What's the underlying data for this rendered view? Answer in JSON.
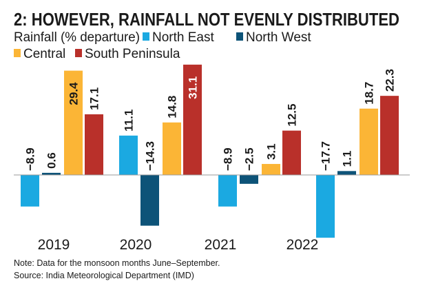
{
  "chart_data": {
    "type": "bar",
    "title": "2: HOWEVER, RAINFALL NOT EVENLY DISTRIBUTED",
    "ylabel": "Rainfall (% departure)",
    "categories": [
      "2019",
      "2020",
      "2021",
      "2022"
    ],
    "series": [
      {
        "name": "North East",
        "color": "#1ba9e1",
        "values": [
          -8.9,
          11.1,
          -8.9,
          -17.7
        ]
      },
      {
        "name": "North West",
        "color": "#0d5378",
        "values": [
          0.6,
          -14.3,
          -2.5,
          1.1
        ]
      },
      {
        "name": "Central",
        "color": "#fbb536",
        "values": [
          29.4,
          14.8,
          3.1,
          18.7
        ]
      },
      {
        "name": "South Peninsula",
        "color": "#b9302a",
        "values": [
          17.1,
          31.1,
          12.5,
          22.3
        ]
      }
    ],
    "ylim": [
      -20,
      32
    ],
    "grid": false,
    "legend": "top-left",
    "notes": [
      "Note: Data for the monsoon months June–September.",
      "Source: India Meteorological Department (IMD)"
    ]
  }
}
